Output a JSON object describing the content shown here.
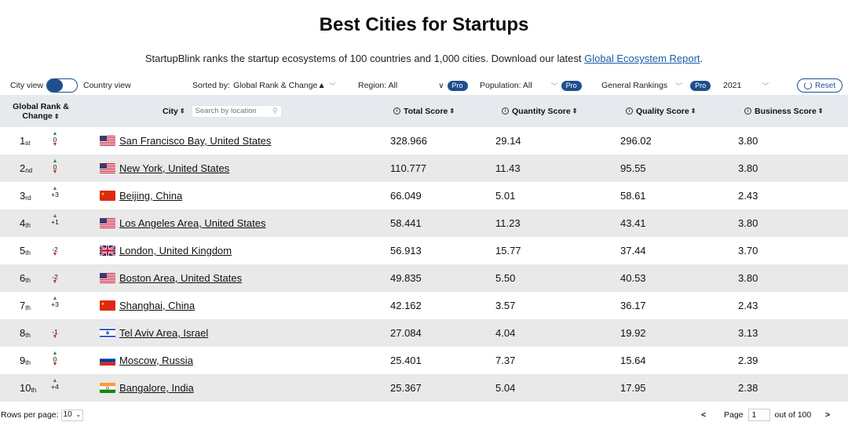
{
  "header": {
    "title": "Best Cities for Startups",
    "subtitle": "StartupBlink ranks the startup ecosystems of 100 countries and 1,000 cities. Download our latest",
    "report_link": "Global Ecosystem Report",
    "subtitle_end": "."
  },
  "controls": {
    "city_view": "City view",
    "country_view": "Country view",
    "sorted_by_label": "Sorted by:",
    "sorted_by_value": "Global Rank & Change▲",
    "region_label": "Region: All",
    "population_label": "Population: All",
    "rankings_label": "General Rankings",
    "pro_badge": "Pro",
    "year": "2021",
    "reset": "Reset"
  },
  "columns": {
    "rank_line1": "Global Rank &",
    "rank_line2": "Change",
    "city": "City",
    "search_placeholder": "Search by location",
    "total": "Total Score",
    "quantity": "Quantity Score",
    "quality": "Quality Score",
    "business": "Business Score",
    "sort_glyph": "⇕",
    "info_glyph": "i"
  },
  "rows": [
    {
      "rank": "1",
      "suffix": "st",
      "change": "0",
      "dir": "both",
      "city": "San Francisco Bay, United States",
      "flag": "us",
      "total": "328.966",
      "quantity": "29.14",
      "quality": "296.02",
      "business": "3.80"
    },
    {
      "rank": "2",
      "suffix": "nd",
      "change": "0",
      "dir": "both",
      "city": "New York, United States",
      "flag": "us",
      "total": "110.777",
      "quantity": "11.43",
      "quality": "95.55",
      "business": "3.80"
    },
    {
      "rank": "3",
      "suffix": "rd",
      "change": "+3",
      "dir": "up",
      "city": "Beijing, China",
      "flag": "cn",
      "total": "66.049",
      "quantity": "5.01",
      "quality": "58.61",
      "business": "2.43"
    },
    {
      "rank": "4",
      "suffix": "th",
      "change": "+1",
      "dir": "up",
      "city": "Los Angeles Area, United States",
      "flag": "us",
      "total": "58.441",
      "quantity": "11.23",
      "quality": "43.41",
      "business": "3.80"
    },
    {
      "rank": "5",
      "suffix": "th",
      "change": "-2",
      "dir": "down",
      "city": "London, United Kingdom",
      "flag": "uk",
      "total": "56.913",
      "quantity": "15.77",
      "quality": "37.44",
      "business": "3.70"
    },
    {
      "rank": "6",
      "suffix": "th",
      "change": "-2",
      "dir": "down",
      "city": "Boston Area, United States",
      "flag": "us",
      "total": "49.835",
      "quantity": "5.50",
      "quality": "40.53",
      "business": "3.80"
    },
    {
      "rank": "7",
      "suffix": "th",
      "change": "+3",
      "dir": "up",
      "city": "Shanghai, China",
      "flag": "cn",
      "total": "42.162",
      "quantity": "3.57",
      "quality": "36.17",
      "business": "2.43"
    },
    {
      "rank": "8",
      "suffix": "th",
      "change": "-1",
      "dir": "down",
      "city": "Tel Aviv Area, Israel",
      "flag": "il",
      "total": "27.084",
      "quantity": "4.04",
      "quality": "19.92",
      "business": "3.13"
    },
    {
      "rank": "9",
      "suffix": "th",
      "change": "0",
      "dir": "both",
      "city": "Moscow, Russia",
      "flag": "ru",
      "total": "25.401",
      "quantity": "7.37",
      "quality": "15.64",
      "business": "2.39"
    },
    {
      "rank": "10",
      "suffix": "th",
      "change": "+4",
      "dir": "up",
      "city": "Bangalore, India",
      "flag": "in",
      "total": "25.367",
      "quantity": "5.04",
      "quality": "17.95",
      "business": "2.38"
    }
  ],
  "footer": {
    "rows_per_page_label": "Rows per page:",
    "rows_per_page_value": "10",
    "prev": "<",
    "page_label": "Page",
    "page_value": "1",
    "out_of": "out of 100",
    "next": ">"
  },
  "colors": {
    "accent": "#1e4f8c",
    "header_bg": "#e6e9ee",
    "alt_row": "#e9e9e9",
    "up": "#2b8a3e",
    "down": "#dd2222",
    "link": "#1a5fa8"
  }
}
